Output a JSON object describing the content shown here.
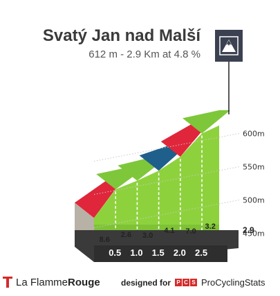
{
  "header": {
    "title": "Svatý Jan nad Malší",
    "subtitle": "612 m - 2.9 Km at 4.8 %"
  },
  "badge": {
    "icon": "mountain-icon"
  },
  "chart_data": {
    "type": "area",
    "title": "Svatý Jan nad Malší",
    "subtitle": "612 m - 2.9 Km at 4.8 %",
    "x_ticks": [
      "0.5",
      "1.0",
      "1.5",
      "2.0",
      "2.5"
    ],
    "x_end_label": "2.9",
    "y_ticks": [
      "450m",
      "500m",
      "550m",
      "600m"
    ],
    "y_tick_values": [
      450,
      500,
      550,
      600
    ],
    "segments": [
      {
        "start_km": 0.0,
        "end_km": 0.5,
        "gradient": 8.6,
        "color": "#e0263a"
      },
      {
        "start_km": 0.5,
        "end_km": 1.0,
        "gradient": 2.6,
        "color": "#7ec73a"
      },
      {
        "start_km": 1.0,
        "end_km": 1.5,
        "gradient": 3.0,
        "color": "#7ec73a"
      },
      {
        "start_km": 1.5,
        "end_km": 2.0,
        "gradient": 4.1,
        "color": "#1f5f8c"
      },
      {
        "start_km": 2.0,
        "end_km": 2.5,
        "gradient": 7.0,
        "color": "#e0263a"
      },
      {
        "start_km": 2.5,
        "end_km": 2.9,
        "gradient": 3.2,
        "color": "#7ec73a"
      }
    ],
    "gradient_labels": [
      "8.6",
      "2.6",
      "3.0",
      "4.1",
      "7.0",
      "3.2"
    ],
    "elevation_km": [
      0.0,
      0.5,
      1.0,
      1.5,
      2.0,
      2.5,
      2.9
    ],
    "elevation_m": [
      473,
      516,
      529,
      544,
      565,
      600,
      612
    ],
    "ylim": [
      400,
      620
    ],
    "xlim": [
      0,
      2.9
    ],
    "grid": true
  },
  "footer": {
    "brand_part1": "La Flamme",
    "brand_part2": "Rouge",
    "designed_label": "designed for",
    "pcs_letters": [
      "P",
      "C",
      "S"
    ],
    "pcs_name": "ProCyclingStats",
    "brand_color": "#d52a2a"
  }
}
